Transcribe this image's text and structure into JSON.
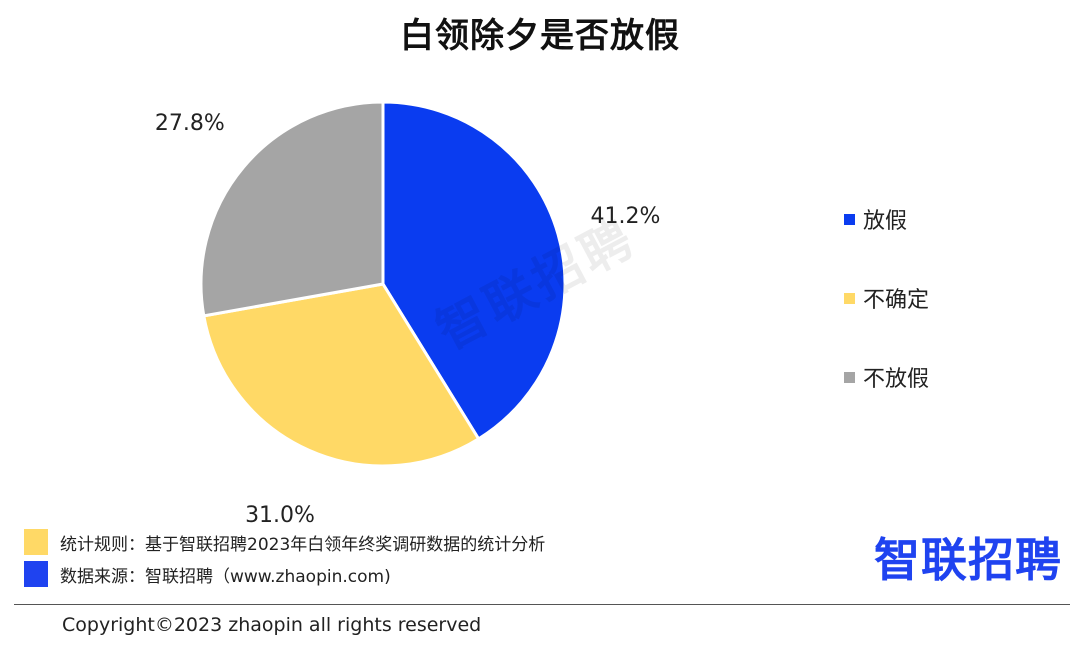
{
  "title": "白领除夕是否放假",
  "watermark": "智联招聘",
  "chart_data": {
    "type": "pie",
    "title": "白领除夕是否放假",
    "slices": [
      {
        "name": "放假",
        "value": 41.2,
        "label": "41.2%",
        "color": "#0a3cf0"
      },
      {
        "name": "不确定",
        "value": 31.0,
        "label": "31.0%",
        "color": "#ffd966"
      },
      {
        "name": "不放假",
        "value": 27.8,
        "label": "27.8%",
        "color": "#a5a5a5"
      }
    ],
    "start": "12 o'clock",
    "direction": "clockwise",
    "legend_position": "right"
  },
  "notes": [
    {
      "text": "统计规则：基于智联招聘2023年白领年终奖调研数据的统计分析",
      "color": "#ffd966"
    },
    {
      "text": "数据来源：智联招聘（www.zhaopin.com)",
      "color": "#1f43f0"
    }
  ],
  "brand": "智联招聘",
  "brand_color": "#1f43f0",
  "copyright": "Copyright©2023 zhaopin all rights reserved"
}
